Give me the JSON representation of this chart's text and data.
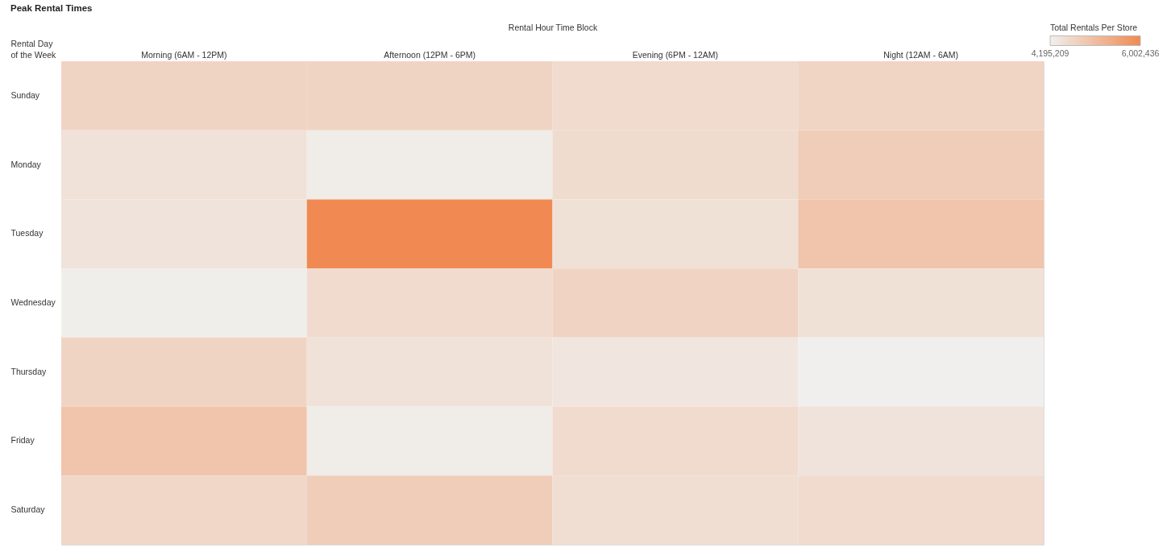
{
  "chart_data": {
    "type": "heatmap",
    "title": "Peak Rental Times",
    "xlabel": "Rental Hour Time Block",
    "ylabel": "Rental Day\nof the Week",
    "clabel": "Total Rentals Per Store",
    "categories": [
      "Morning (6AM - 12PM)",
      "Afternoon (12PM - 6PM)",
      "Evening (6PM - 12AM)",
      "Night (12AM - 6AM)"
    ],
    "y_categories": [
      "Sunday",
      "Monday",
      "Tuesday",
      "Wednesday",
      "Thursday",
      "Friday",
      "Saturday"
    ],
    "cells": [
      [
        4680000,
        4680000,
        4560000,
        4670000
      ],
      [
        4430000,
        4250000,
        4540000,
        4810000
      ],
      [
        4410000,
        6002436,
        4450000,
        4950000
      ],
      [
        4220000,
        4560000,
        4700000,
        4450000
      ],
      [
        4680000,
        4430000,
        4360000,
        4195209
      ],
      [
        4950000,
        4250000,
        4560000,
        4410000
      ],
      [
        4630000,
        4810000,
        4500000,
        4560000
      ]
    ],
    "clim": [
      4195209,
      6002436
    ],
    "cticks": [
      {
        "value": 4195209,
        "label": "4,195,209"
      },
      {
        "value": 6002436,
        "label": "6,002,436"
      }
    ]
  }
}
